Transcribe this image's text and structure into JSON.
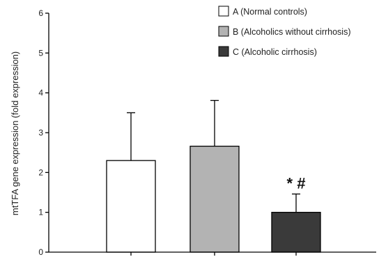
{
  "chart_data": {
    "type": "bar",
    "ylabel": "mtTFA gene expression (fold expression)",
    "xlabel": "",
    "ylim": [
      0,
      6
    ],
    "yticks": [
      0,
      1,
      2,
      3,
      4,
      5,
      6
    ],
    "grid": false,
    "legend_position": "top-right",
    "series": [
      {
        "name": "A (Normal controls)",
        "value": 2.3,
        "error": 1.2,
        "color": "#ffffff"
      },
      {
        "name": "B (Alcoholics without cirrhosis)",
        "value": 2.66,
        "error": 1.15,
        "color": "#b3b3b3"
      },
      {
        "name": "C (Alcoholic cirrhosis)",
        "value": 1.0,
        "error": 0.46,
        "color": "#3a3a3a"
      }
    ],
    "annotations": [
      {
        "series": "C (Alcoholic cirrhosis)",
        "text": "* #"
      }
    ]
  }
}
